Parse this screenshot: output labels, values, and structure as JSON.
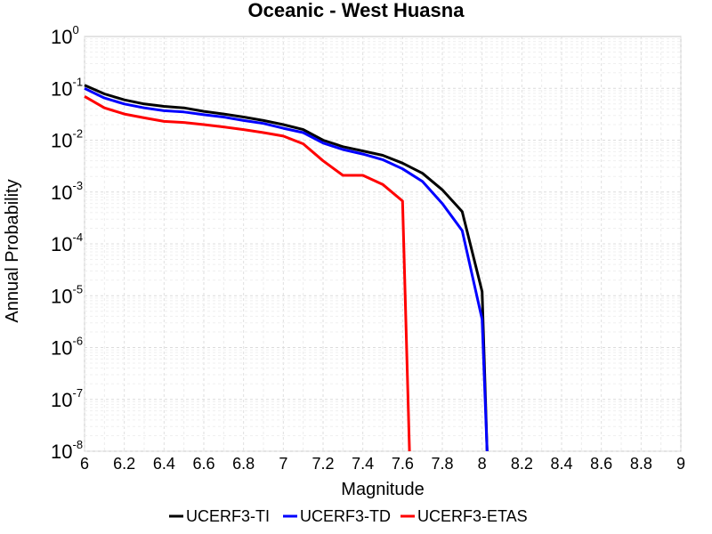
{
  "chart_data": {
    "type": "line",
    "title": "Oceanic - West Huasna",
    "xlabel": "Magnitude",
    "ylabel": "Annual Probability",
    "xlim": [
      6,
      9
    ],
    "ylim": [
      1e-08,
      1
    ],
    "yscale": "log",
    "grid": true,
    "legend_position": "bottom",
    "xticks": [
      "6",
      "6.2",
      "6.4",
      "6.6",
      "6.8",
      "7",
      "7.2",
      "7.4",
      "7.6",
      "7.8",
      "8",
      "8.2",
      "8.4",
      "8.6",
      "8.8",
      "9"
    ],
    "yticks": [
      {
        "base": "10",
        "exp": "-8",
        "value": 1e-08
      },
      {
        "base": "10",
        "exp": "-7",
        "value": 1e-07
      },
      {
        "base": "10",
        "exp": "-6",
        "value": 1e-06
      },
      {
        "base": "10",
        "exp": "-5",
        "value": 1e-05
      },
      {
        "base": "10",
        "exp": "-4",
        "value": 0.0001
      },
      {
        "base": "10",
        "exp": "-3",
        "value": 0.001
      },
      {
        "base": "10",
        "exp": "-2",
        "value": 0.01
      },
      {
        "base": "10",
        "exp": "-1",
        "value": 0.1
      },
      {
        "base": "10",
        "exp": "0",
        "value": 1
      }
    ],
    "series": [
      {
        "name": "UCERF3-TI",
        "color": "#000000",
        "points": [
          [
            6.0,
            0.115
          ],
          [
            6.1,
            0.078
          ],
          [
            6.2,
            0.06
          ],
          [
            6.3,
            0.05
          ],
          [
            6.4,
            0.045
          ],
          [
            6.5,
            0.042
          ],
          [
            6.6,
            0.036
          ],
          [
            6.7,
            0.032
          ],
          [
            6.8,
            0.028
          ],
          [
            6.9,
            0.024
          ],
          [
            7.0,
            0.02
          ],
          [
            7.1,
            0.016
          ],
          [
            7.2,
            0.01
          ],
          [
            7.3,
            0.0075
          ],
          [
            7.4,
            0.0062
          ],
          [
            7.5,
            0.0051
          ],
          [
            7.6,
            0.0036
          ],
          [
            7.7,
            0.0023
          ],
          [
            7.8,
            0.0011
          ],
          [
            7.9,
            0.00042
          ],
          [
            8.0,
            1.2e-05
          ],
          [
            8.025,
            1e-08
          ]
        ]
      },
      {
        "name": "UCERF3-TD",
        "color": "#0000ff",
        "points": [
          [
            6.0,
            0.1
          ],
          [
            6.1,
            0.065
          ],
          [
            6.2,
            0.05
          ],
          [
            6.3,
            0.042
          ],
          [
            6.4,
            0.037
          ],
          [
            6.5,
            0.035
          ],
          [
            6.6,
            0.031
          ],
          [
            6.7,
            0.028
          ],
          [
            6.8,
            0.024
          ],
          [
            6.9,
            0.021
          ],
          [
            7.0,
            0.017
          ],
          [
            7.1,
            0.014
          ],
          [
            7.2,
            0.0088
          ],
          [
            7.3,
            0.0066
          ],
          [
            7.4,
            0.0054
          ],
          [
            7.5,
            0.0042
          ],
          [
            7.6,
            0.0028
          ],
          [
            7.7,
            0.0016
          ],
          [
            7.8,
            0.0006
          ],
          [
            7.9,
            0.00018
          ],
          [
            8.0,
            3.5e-06
          ],
          [
            8.025,
            1e-08
          ]
        ]
      },
      {
        "name": "UCERF3-ETAS",
        "color": "#ff0000",
        "points": [
          [
            6.0,
            0.07
          ],
          [
            6.1,
            0.042
          ],
          [
            6.2,
            0.032
          ],
          [
            6.3,
            0.027
          ],
          [
            6.4,
            0.023
          ],
          [
            6.5,
            0.022
          ],
          [
            6.6,
            0.02
          ],
          [
            6.7,
            0.018
          ],
          [
            6.8,
            0.016
          ],
          [
            6.9,
            0.014
          ],
          [
            7.0,
            0.012
          ],
          [
            7.1,
            0.0085
          ],
          [
            7.2,
            0.004
          ],
          [
            7.3,
            0.0021
          ],
          [
            7.4,
            0.0021
          ],
          [
            7.5,
            0.0014
          ],
          [
            7.6,
            0.00067
          ],
          [
            7.635,
            1e-08
          ]
        ]
      }
    ]
  }
}
